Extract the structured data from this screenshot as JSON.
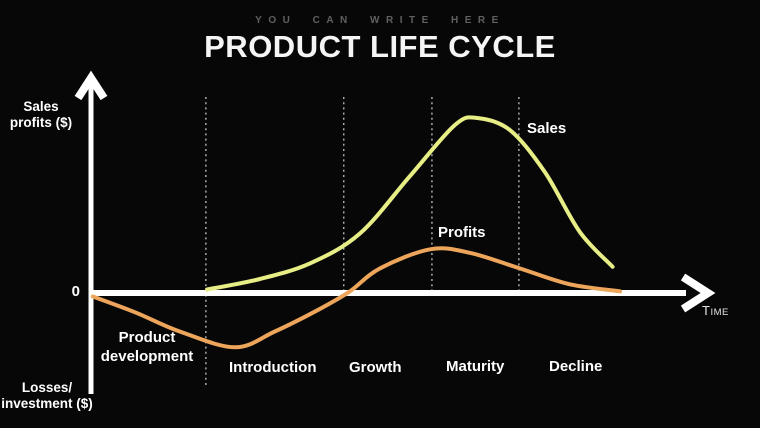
{
  "header": {
    "kicker": "YOU CAN WRITE HERE",
    "title": "PRODUCT LIFE CYCLE"
  },
  "axis_labels": {
    "y_positive": "Sales\nprofits ($)",
    "origin": "0",
    "y_negative": "Losses/\ninvestment ($)",
    "x": "TIME"
  },
  "stage_labels": [
    "Product\ndevelopment",
    "Introduction",
    "Growth",
    "Maturity",
    "Decline"
  ],
  "colors": {
    "background": "#070707",
    "axis": "#ffffff",
    "boundary_dashes": "#b5b5b5",
    "kicker_text": "#606060",
    "sales_curve": "#e7ee85",
    "profits_curve": "#eca55a"
  },
  "chart_data": {
    "type": "line",
    "title": "PRODUCT LIFE CYCLE",
    "xlabel": "TIME",
    "ylabel": "Sales profits ($) above axis / Losses investment ($) below axis",
    "axes_note": "Conceptual chart: x normalized 0-1 along time axis, y normalized with x-axis = 0 and Sales peak = 1.0",
    "grid": "off",
    "stages": [
      "Product development",
      "Introduction",
      "Growth",
      "Maturity",
      "Decline"
    ],
    "stage_boundaries_x": [
      0.185,
      0.407,
      0.549,
      0.689
    ],
    "series": [
      {
        "name": "Sales",
        "color": "#e7ee85",
        "x": [
          0.187,
          0.272,
          0.353,
          0.433,
          0.514,
          0.586,
          0.622,
          0.675,
          0.731,
          0.787,
          0.84
        ],
        "values": [
          0.02,
          0.08,
          0.17,
          0.34,
          0.67,
          0.96,
          1.0,
          0.93,
          0.69,
          0.35,
          0.15
        ]
      },
      {
        "name": "Profits",
        "color": "#eca55a",
        "x": [
          0.003,
          0.071,
          0.143,
          0.232,
          0.296,
          0.369,
          0.417,
          0.465,
          0.546,
          0.61,
          0.691,
          0.771,
          0.852
        ],
        "values": [
          -0.02,
          -0.11,
          -0.22,
          -0.31,
          -0.22,
          -0.09,
          0.01,
          0.14,
          0.25,
          0.23,
          0.14,
          0.05,
          0.01
        ]
      }
    ]
  }
}
